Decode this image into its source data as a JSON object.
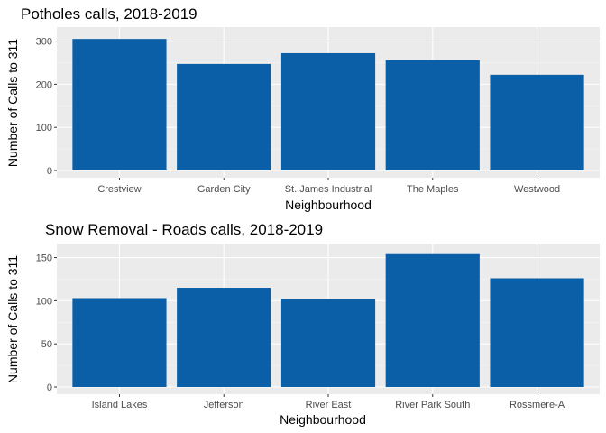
{
  "chart_data": [
    {
      "type": "bar",
      "title": "Potholes calls, 2018-2019",
      "xlabel": "Neighbourhood",
      "ylabel": "Number of Calls to 311",
      "categories": [
        "Crestview",
        "Garden City",
        "St. James Industrial",
        "The Maples",
        "Westwood"
      ],
      "values": [
        305,
        247,
        272,
        256,
        222
      ],
      "ylim": [
        0,
        320
      ],
      "yticks": [
        0,
        100,
        200,
        300
      ],
      "bar_color": "#0a5fa6"
    },
    {
      "type": "bar",
      "title": "Snow Removal - Roads calls, 2018-2019",
      "xlabel": "Neighbourhood",
      "ylabel": "Number of Calls to 311",
      "categories": [
        "Island Lakes",
        "Jefferson",
        "River East",
        "River Park South",
        "Rossmere-A"
      ],
      "values": [
        103,
        115,
        102,
        154,
        126
      ],
      "ylim": [
        0,
        160
      ],
      "yticks": [
        0,
        50,
        100,
        150
      ],
      "bar_color": "#0a5fa6"
    }
  ]
}
